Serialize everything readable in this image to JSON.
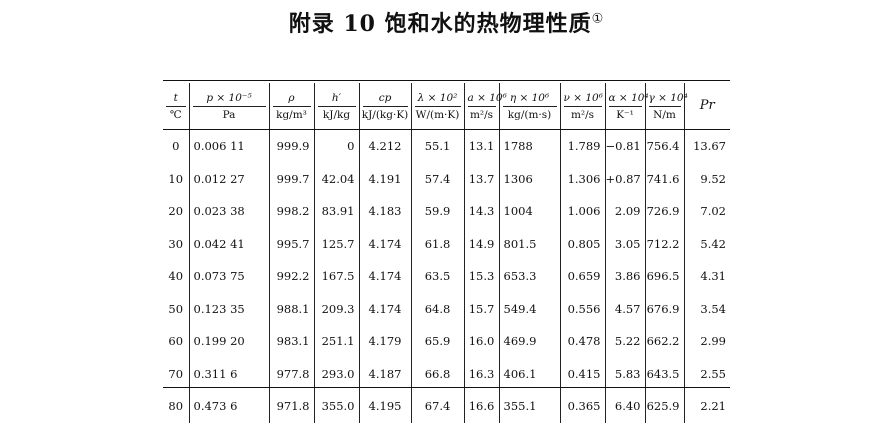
{
  "page": {
    "title": "附录 10   饱和水的热物理性质",
    "title_footnote": "①"
  },
  "table": {
    "headers": [
      {
        "top": "t",
        "bottom": "℃"
      },
      {
        "top": "p × 10⁻⁵",
        "bottom": "Pa"
      },
      {
        "top": "ρ",
        "bottom": "kg/m³"
      },
      {
        "top": "h′",
        "bottom": "kJ/kg"
      },
      {
        "top": "cp",
        "bottom": "kJ/(kg·K)"
      },
      {
        "top": "λ × 10²",
        "bottom": "W/(m·K)"
      },
      {
        "top": "a × 10⁶",
        "bottom": "m²/s"
      },
      {
        "top": "η × 10⁶",
        "bottom": "kg/(m·s)"
      },
      {
        "top": "ν × 10⁶",
        "bottom": "m²/s"
      },
      {
        "top": "α × 10⁴",
        "bottom": "K⁻¹"
      },
      {
        "top": "γ × 10⁴",
        "bottom": "N/m"
      },
      {
        "single": "Pr"
      }
    ],
    "rows": [
      [
        "0",
        "0.006 11",
        "999.9",
        "0",
        "4.212",
        "55.1",
        "13.1",
        "1788",
        "1.789",
        "−0.81",
        "756.4",
        "13.67"
      ],
      [
        "10",
        "0.012 27",
        "999.7",
        "42.04",
        "4.191",
        "57.4",
        "13.7",
        "1306",
        "1.306",
        "+0.87",
        "741.6",
        "9.52"
      ],
      [
        "20",
        "0.023 38",
        "998.2",
        "83.91",
        "4.183",
        "59.9",
        "14.3",
        "1004",
        "1.006",
        "2.09",
        "726.9",
        "7.02"
      ],
      [
        "30",
        "0.042 41",
        "995.7",
        "125.7",
        "4.174",
        "61.8",
        "14.9",
        "801.5",
        "0.805",
        "3.05",
        "712.2",
        "5.42"
      ],
      [
        "40",
        "0.073 75",
        "992.2",
        "167.5",
        "4.174",
        "63.5",
        "15.3",
        "653.3",
        "0.659",
        "3.86",
        "696.5",
        "4.31"
      ],
      [
        "50",
        "0.123 35",
        "988.1",
        "209.3",
        "4.174",
        "64.8",
        "15.7",
        "549.4",
        "0.556",
        "4.57",
        "676.9",
        "3.54"
      ],
      [
        "60",
        "0.199 20",
        "983.1",
        "251.1",
        "4.179",
        "65.9",
        "16.0",
        "469.9",
        "0.478",
        "5.22",
        "662.2",
        "2.99"
      ],
      [
        "70",
        "0.311 6",
        "977.8",
        "293.0",
        "4.187",
        "66.8",
        "16.3",
        "406.1",
        "0.415",
        "5.83",
        "643.5",
        "2.55"
      ],
      [
        "80",
        "0.473 6",
        "971.8",
        "355.0",
        "4.195",
        "67.4",
        "16.6",
        "355.1",
        "0.365",
        "6.40",
        "625.9",
        "2.21"
      ]
    ]
  }
}
